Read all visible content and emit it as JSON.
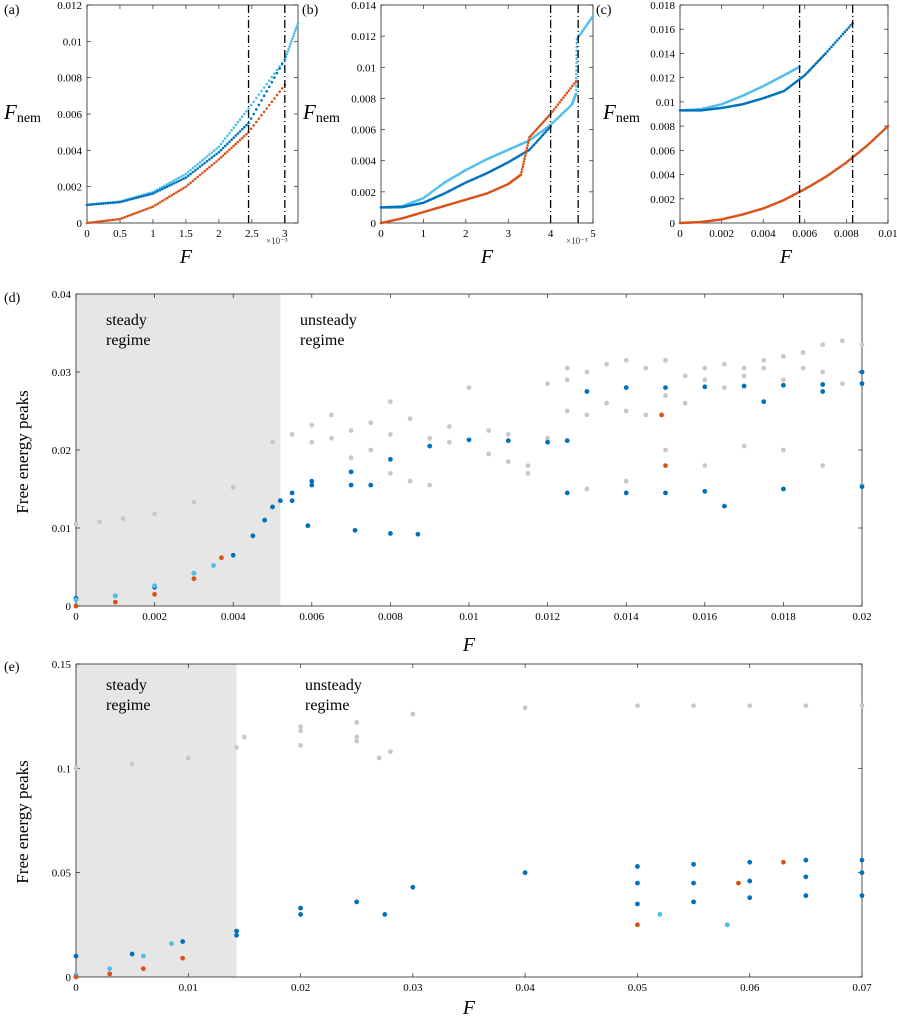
{
  "colors": {
    "dark_blue": "#0072BD",
    "light_blue": "#4DBEEE",
    "orange": "#D95319",
    "gray": "#C8C8C8",
    "steady_shade": "#E6E6E6"
  },
  "chart_data": [
    {
      "panel": "(a)",
      "type": "line",
      "xlabel": "F",
      "ylabel_main": "F",
      "ylabel_sub": "nem",
      "xlim": [
        0,
        3.2
      ],
      "ylim": [
        0,
        0.012
      ],
      "xticks": [
        "0",
        "0.5",
        "1",
        "1.5",
        "2",
        "2.5",
        "3"
      ],
      "yticks": [
        "0",
        "0.002",
        "0.004",
        "0.006",
        "0.008",
        "0.01",
        "0.012"
      ],
      "x_exponent": "×10⁻³",
      "vlines": [
        2.45,
        3.0
      ],
      "series": [
        {
          "name": "light blue branch",
          "color": "light_blue",
          "x": [
            0,
            0.5,
            1,
            1.5,
            2,
            2.45,
            3,
            3.2
          ],
          "y": [
            0.001,
            0.00118,
            0.0017,
            0.0027,
            0.0042,
            0.0063,
            0.009,
            0.011
          ]
        },
        {
          "name": "dark blue branch",
          "color": "dark_blue",
          "x": [
            0,
            0.5,
            1,
            1.5,
            2,
            2.45,
            3
          ],
          "y": [
            0.001,
            0.00115,
            0.00162,
            0.0025,
            0.0039,
            0.0055,
            0.009
          ]
        },
        {
          "name": "orange branch",
          "color": "orange",
          "x": [
            0,
            0.5,
            1,
            1.5,
            2,
            2.45,
            3
          ],
          "y": [
            0,
            0.00022,
            0.0009,
            0.002,
            0.0035,
            0.005,
            0.0076
          ]
        }
      ]
    },
    {
      "panel": "(b)",
      "type": "line",
      "xlabel": "F",
      "ylabel_main": "F",
      "ylabel_sub": "nem",
      "xlim": [
        0,
        5
      ],
      "ylim": [
        0,
        0.014
      ],
      "xticks": [
        "0",
        "1",
        "2",
        "3",
        "4",
        "5"
      ],
      "yticks": [
        "0",
        "0.002",
        "0.004",
        "0.006",
        "0.008",
        "0.01",
        "0.012",
        "0.014"
      ],
      "x_exponent": "×10⁻³",
      "vlines": [
        4.0,
        4.65
      ],
      "series": [
        {
          "name": "light blue branch",
          "color": "light_blue",
          "x": [
            0,
            0.5,
            1,
            1.5,
            2,
            2.5,
            3,
            3.5,
            4,
            4.5,
            4.6,
            4.62,
            5
          ],
          "y": [
            0.001,
            0.00108,
            0.0016,
            0.0026,
            0.0034,
            0.0041,
            0.0047,
            0.0053,
            0.0063,
            0.0076,
            0.0083,
            0.0118,
            0.0133
          ]
        },
        {
          "name": "dark blue branch",
          "color": "dark_blue",
          "x": [
            0,
            0.5,
            1,
            1.5,
            2,
            2.5,
            3,
            3.5,
            4
          ],
          "y": [
            0.001,
            0.00102,
            0.0013,
            0.0019,
            0.0026,
            0.0032,
            0.0039,
            0.0047,
            0.0062
          ]
        },
        {
          "name": "orange branch",
          "color": "orange",
          "x": [
            0,
            0.5,
            1,
            1.5,
            2,
            2.5,
            3,
            3.3,
            3.5,
            4,
            4.6
          ],
          "y": [
            0,
            0.0003,
            0.0007,
            0.0011,
            0.0015,
            0.0019,
            0.0025,
            0.0031,
            0.0055,
            0.007,
            0.0091
          ]
        }
      ]
    },
    {
      "panel": "(c)",
      "type": "line",
      "xlabel": "F",
      "ylabel_main": "F",
      "ylabel_sub": "nem",
      "xlim": [
        0,
        0.01
      ],
      "ylim": [
        0,
        0.018
      ],
      "xticks": [
        "0",
        "0.002",
        "0.004",
        "0.006",
        "0.008",
        "0.01"
      ],
      "yticks": [
        "0",
        "0.002",
        "0.004",
        "0.006",
        "0.008",
        "0.01",
        "0.012",
        "0.014",
        "0.016",
        "0.018"
      ],
      "vlines": [
        0.00575,
        0.0083
      ],
      "series": [
        {
          "name": "light blue branch",
          "color": "light_blue",
          "x": [
            0,
            0.001,
            0.002,
            0.003,
            0.004,
            0.005,
            0.00575
          ],
          "y": [
            0.0093,
            0.0094,
            0.0098,
            0.0105,
            0.0113,
            0.0122,
            0.0129
          ]
        },
        {
          "name": "dark blue branch",
          "color": "dark_blue",
          "x": [
            0,
            0.001,
            0.002,
            0.003,
            0.004,
            0.005,
            0.006,
            0.007,
            0.0083
          ],
          "y": [
            0.0093,
            0.0093,
            0.0095,
            0.0098,
            0.0103,
            0.0109,
            0.0122,
            0.014,
            0.0165
          ]
        },
        {
          "name": "orange branch",
          "color": "orange",
          "x": [
            0,
            0.001,
            0.002,
            0.003,
            0.004,
            0.005,
            0.006,
            0.007,
            0.008,
            0.009,
            0.01
          ],
          "y": [
            0,
            8e-05,
            0.0003,
            0.0007,
            0.0012,
            0.0019,
            0.0028,
            0.0038,
            0.005,
            0.0064,
            0.008
          ]
        }
      ]
    },
    {
      "panel": "(d)",
      "type": "scatter",
      "xlabel": "F",
      "ylabel": "Free energy peaks",
      "xlim": [
        0,
        0.02
      ],
      "ylim": [
        0,
        0.04
      ],
      "xticks": [
        "0",
        "0.002",
        "0.004",
        "0.006",
        "0.008",
        "0.01",
        "0.012",
        "0.014",
        "0.016",
        "0.018",
        "0.02"
      ],
      "yticks": [
        "0",
        "0.01",
        "0.02",
        "0.03",
        "0.04"
      ],
      "steady_regime_end": 0.0052,
      "annotations": {
        "steady_line1": "steady",
        "steady_line2": "regime",
        "unsteady_line1": "unsteady",
        "unsteady_line2": "regime"
      },
      "series": [
        {
          "name": "gray max",
          "color": "gray",
          "x": [
            0,
            0.0006,
            0.0012,
            0.002,
            0.003,
            0.004,
            0.005,
            0.006,
            0.008,
            0.01,
            0.012,
            0.0125
          ],
          "y": [
            0.0105,
            0.0108,
            0.0112,
            0.0118,
            0.0133,
            0.0152,
            0.021,
            0.0232,
            0.0262,
            0.028,
            0.0285,
            0.029
          ]
        },
        {
          "name": "gray scatter",
          "color": "gray",
          "x": [
            0.0055,
            0.006,
            0.0065,
            0.007,
            0.0075,
            0.008,
            0.0085,
            0.009,
            0.0095,
            0.0105,
            0.011,
            0.0115,
            0.012,
            0.0125,
            0.013,
            0.0135,
            0.014,
            0.0145,
            0.015,
            0.0155,
            0.016,
            0.0165,
            0.017,
            0.0175,
            0.018,
            0.0185,
            0.019,
            0.0195,
            0.02,
            0.0125,
            0.013,
            0.0135,
            0.014,
            0.0145,
            0.015,
            0.0155,
            0.016,
            0.0165,
            0.017,
            0.0175,
            0.018,
            0.0185,
            0.019,
            0.0195,
            0.02,
            0.0065,
            0.007,
            0.0075,
            0.008,
            0.0085,
            0.009,
            0.0095,
            0.0105,
            0.011,
            0.0115,
            0.013,
            0.014,
            0.015,
            0.016,
            0.017,
            0.018,
            0.019,
            0.02
          ],
          "y": [
            0.022,
            0.021,
            0.0215,
            0.019,
            0.02,
            0.017,
            0.016,
            0.0155,
            0.021,
            0.0195,
            0.0185,
            0.018,
            0.0215,
            0.025,
            0.0245,
            0.026,
            0.025,
            0.0245,
            0.027,
            0.026,
            0.029,
            0.028,
            0.0295,
            0.0305,
            0.029,
            0.0305,
            0.03,
            0.0285,
            0.03,
            0.0305,
            0.03,
            0.031,
            0.0315,
            0.0305,
            0.0315,
            0.0295,
            0.0305,
            0.031,
            0.0305,
            0.0315,
            0.032,
            0.0325,
            0.0335,
            0.034,
            0.0335,
            0.0245,
            0.0225,
            0.0235,
            0.022,
            0.024,
            0.0215,
            0.023,
            0.0225,
            0.022,
            0.017,
            0.015,
            0.016,
            0.02,
            0.018,
            0.0205,
            0.02,
            0.018,
            0.0155
          ]
        },
        {
          "name": "dark blue main",
          "color": "dark_blue",
          "x": [
            0,
            0.001,
            0.002,
            0.003,
            0.004,
            0.0045,
            0.0048,
            0.005,
            0.0052,
            0.0055,
            0.006,
            0.007,
            0.008,
            0.009,
            0.01,
            0.011,
            0.012,
            0.0125,
            0.013,
            0.014,
            0.015,
            0.016,
            0.017,
            0.018,
            0.019,
            0.02
          ],
          "y": [
            0.001,
            0.0013,
            0.0024,
            0.0042,
            0.0065,
            0.009,
            0.011,
            0.0127,
            0.0135,
            0.0145,
            0.016,
            0.0172,
            0.0188,
            0.0205,
            0.0213,
            0.0212,
            0.021,
            0.0212,
            0.0275,
            0.028,
            0.028,
            0.0281,
            0.0282,
            0.0283,
            0.0284,
            0.0285
          ]
        },
        {
          "name": "dark blue lower",
          "color": "dark_blue",
          "x": [
            0.0055,
            0.006,
            0.007,
            0.0075,
            0.0125,
            0.014,
            0.015,
            0.016,
            0.018,
            0.02,
            0.0071,
            0.008,
            0.0087,
            0.0059,
            0.0165,
            0.0175,
            0.019,
            0.02
          ],
          "y": [
            0.0135,
            0.0155,
            0.0155,
            0.0155,
            0.0145,
            0.0145,
            0.0145,
            0.0147,
            0.015,
            0.0153,
            0.0097,
            0.0093,
            0.0092,
            0.0103,
            0.0128,
            0.0262,
            0.0275,
            0.03
          ]
        },
        {
          "name": "light blue",
          "color": "light_blue",
          "x": [
            0,
            0.001,
            0.002,
            0.003,
            0.0035
          ],
          "y": [
            0.0008,
            0.0013,
            0.0026,
            0.0042,
            0.0052
          ]
        },
        {
          "name": "orange",
          "color": "orange",
          "x": [
            0,
            0.001,
            0.002,
            0.003,
            0.0037,
            0.0149,
            0.015
          ],
          "y": [
            0,
            0.0005,
            0.0015,
            0.0035,
            0.0062,
            0.0245,
            0.018
          ]
        }
      ]
    },
    {
      "panel": "(e)",
      "type": "scatter",
      "xlabel": "F",
      "ylabel": "Free energy peaks",
      "xlim": [
        0,
        0.07
      ],
      "ylim": [
        0,
        0.15
      ],
      "xticks": [
        "0",
        "0.01",
        "0.02",
        "0.03",
        "0.04",
        "0.05",
        "0.06",
        "0.07"
      ],
      "yticks": [
        "0",
        "0.05",
        "0.1",
        "0.15"
      ],
      "steady_regime_end": 0.0143,
      "annotations": {
        "steady_line1": "steady",
        "steady_line2": "regime",
        "unsteady_line1": "unsteady",
        "unsteady_line2": "regime"
      },
      "series": [
        {
          "name": "gray",
          "color": "gray",
          "x": [
            0,
            0.005,
            0.01,
            0.0143,
            0.02,
            0.025,
            0.03,
            0.04,
            0.05,
            0.055,
            0.06,
            0.065,
            0.07,
            0.015,
            0.02,
            0.025,
            0.028,
            0.02,
            0.025,
            0.027
          ],
          "y": [
            0.1,
            0.102,
            0.105,
            0.11,
            0.118,
            0.122,
            0.126,
            0.129,
            0.13,
            0.13,
            0.13,
            0.13,
            0.13,
            0.115,
            0.12,
            0.113,
            0.108,
            0.111,
            0.115,
            0.105
          ]
        },
        {
          "name": "dark blue",
          "color": "dark_blue",
          "x": [
            0,
            0.005,
            0.0095,
            0.0143,
            0.02,
            0.03,
            0.04,
            0.05,
            0.055,
            0.06,
            0.065,
            0.07,
            0.0143,
            0.02,
            0.025,
            0.0275,
            0.05,
            0.055,
            0.06,
            0.065,
            0.07,
            0.05,
            0.055,
            0.06,
            0.065,
            0.07
          ],
          "y": [
            0.01,
            0.011,
            0.017,
            0.022,
            0.033,
            0.043,
            0.05,
            0.053,
            0.054,
            0.055,
            0.056,
            0.056,
            0.02,
            0.03,
            0.036,
            0.03,
            0.045,
            0.045,
            0.046,
            0.048,
            0.05,
            0.035,
            0.036,
            0.038,
            0.039,
            0.039
          ]
        },
        {
          "name": "light blue",
          "color": "light_blue",
          "x": [
            0,
            0.003,
            0.006,
            0.0085,
            0.052,
            0.058
          ],
          "y": [
            0.001,
            0.004,
            0.01,
            0.016,
            0.03,
            0.025
          ]
        },
        {
          "name": "orange",
          "color": "orange",
          "x": [
            0,
            0.003,
            0.006,
            0.0095,
            0.05,
            0.059,
            0.063
          ],
          "y": [
            0,
            0.0015,
            0.004,
            0.009,
            0.025,
            0.045,
            0.055
          ]
        }
      ]
    }
  ]
}
